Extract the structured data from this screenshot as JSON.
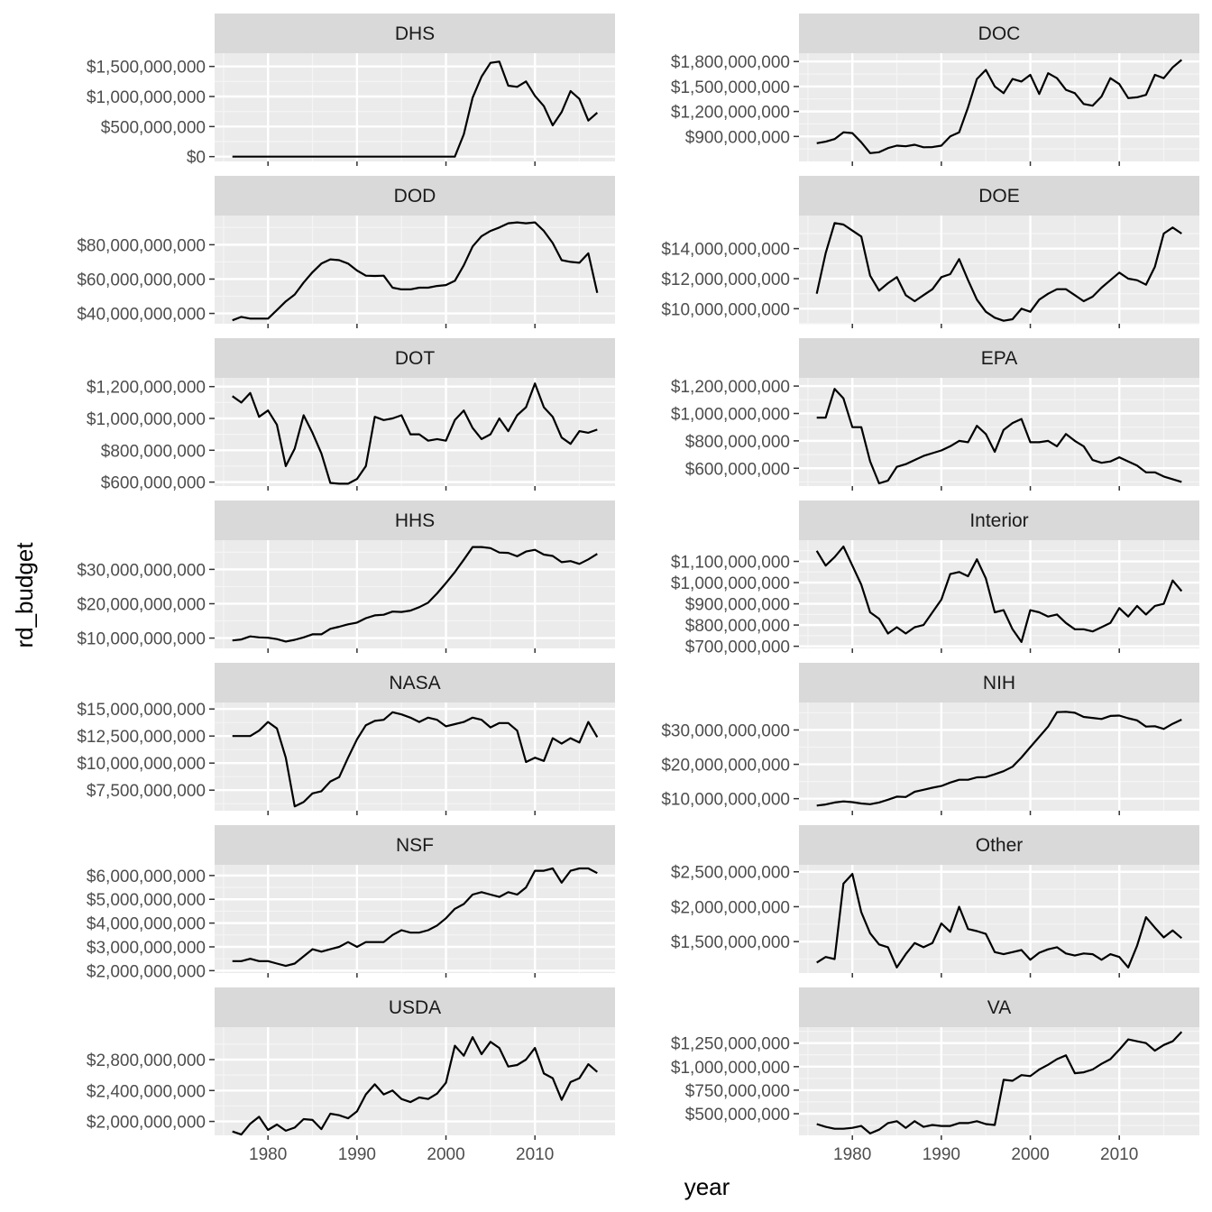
{
  "chart_data": {
    "type": "line",
    "xlabel": "year",
    "ylabel": "rd_budget",
    "xlim": [
      1974,
      2019
    ],
    "x_ticks": [
      1980,
      1990,
      2000,
      2010
    ],
    "x_tick_labels": [
      "1980",
      "1990",
      "2000",
      "2010"
    ],
    "x": [
      1976,
      1977,
      1978,
      1979,
      1980,
      1981,
      1982,
      1983,
      1984,
      1985,
      1986,
      1987,
      1988,
      1989,
      1990,
      1991,
      1992,
      1993,
      1994,
      1995,
      1996,
      1997,
      1998,
      1999,
      2000,
      2001,
      2002,
      2003,
      2004,
      2005,
      2006,
      2007,
      2008,
      2009,
      2010,
      2011,
      2012,
      2013,
      2014,
      2015,
      2016,
      2017
    ],
    "grid": true,
    "facets": [
      {
        "name": "DHS",
        "ylim": [
          -80000000,
          1720000000
        ],
        "y_ticks": [
          0,
          500000000,
          1000000000,
          1500000000
        ],
        "y_tick_labels": [
          "$0",
          "$500,000,000",
          "$1,000,000,000",
          "$1,500,000,000"
        ],
        "values": [
          0,
          0,
          0,
          0,
          0,
          0,
          0,
          0,
          0,
          0,
          0,
          0,
          0,
          0,
          0,
          0,
          0,
          0,
          0,
          0,
          0,
          0,
          0,
          0,
          0,
          0,
          370000000,
          980000000,
          1330000000,
          1560000000,
          1580000000,
          1180000000,
          1160000000,
          1250000000,
          1010000000,
          840000000,
          520000000,
          740000000,
          1090000000,
          960000000,
          600000000,
          730000000
        ]
      },
      {
        "name": "DOC",
        "ylim": [
          600000000,
          1900000000
        ],
        "y_ticks": [
          900000000,
          1200000000,
          1500000000,
          1800000000
        ],
        "y_tick_labels": [
          "$900,000,000",
          "$1,200,000,000",
          "$1,500,000,000",
          "$1,800,000,000"
        ],
        "values": [
          819000000,
          837000000,
          869000000,
          950000000,
          940000000,
          830000000,
          700000000,
          710000000,
          760000000,
          790000000,
          782000000,
          800000000,
          770000000,
          772000000,
          790000000,
          900000000,
          950000000,
          1250000000,
          1590000000,
          1700000000,
          1500000000,
          1420000000,
          1590000000,
          1560000000,
          1640000000,
          1410000000,
          1660000000,
          1600000000,
          1460000000,
          1420000000,
          1290000000,
          1270000000,
          1380000000,
          1600000000,
          1530000000,
          1360000000,
          1370000000,
          1400000000,
          1640000000,
          1600000000,
          1730000000,
          1820000000
        ]
      },
      {
        "name": "DOD",
        "ylim": [
          34000000000,
          97000000000
        ],
        "y_ticks": [
          40000000000,
          60000000000,
          80000000000
        ],
        "y_tick_labels": [
          "$40,000,000,000",
          "$60,000,000,000",
          "$80,000,000,000"
        ],
        "values": [
          36000000000,
          38000000000,
          37000000000,
          37000000000,
          37000000000,
          42000000000,
          47000000000,
          51000000000,
          58000000000,
          64000000000,
          69000000000,
          71500000000,
          71000000000,
          69000000000,
          65000000000,
          62000000000,
          61800000000,
          62000000000,
          55000000000,
          54000000000,
          54000000000,
          55000000000,
          55000000000,
          56000000000,
          56500000000,
          59000000000,
          68000000000,
          79000000000,
          85000000000,
          88000000000,
          90000000000,
          92500000000,
          93000000000,
          92500000000,
          93000000000,
          88000000000,
          81000000000,
          71000000000,
          70000000000,
          69500000000,
          75000000000,
          52000000000
        ]
      },
      {
        "name": "DOE",
        "ylim": [
          9000000000,
          16200000000
        ],
        "y_ticks": [
          10000000000,
          12000000000,
          14000000000
        ],
        "y_tick_labels": [
          "$10,000,000,000",
          "$12,000,000,000",
          "$14,000,000,000"
        ],
        "values": [
          11000000000,
          13700000000,
          15700000000,
          15600000000,
          15200000000,
          14800000000,
          12200000000,
          11200000000,
          11700000000,
          12100000000,
          10900000000,
          10500000000,
          10900000000,
          11300000000,
          12100000000,
          12300000000,
          13300000000,
          11900000000,
          10600000000,
          9800000000,
          9400000000,
          9200000000,
          9300000000,
          10000000000,
          9800000000,
          10600000000,
          11000000000,
          11300000000,
          11300000000,
          10900000000,
          10500000000,
          10800000000,
          11400000000,
          11900000000,
          12400000000,
          12000000000,
          11900000000,
          11600000000,
          12800000000,
          15000000000,
          15400000000,
          15000000000
        ]
      },
      {
        "name": "DOT",
        "ylim": [
          575000000,
          1255000000
        ],
        "y_ticks": [
          600000000,
          800000000,
          1000000000,
          1200000000
        ],
        "y_tick_labels": [
          "$600,000,000",
          "$800,000,000",
          "$1,000,000,000",
          "$1,200,000,000"
        ],
        "values": [
          1140000000,
          1100000000,
          1160000000,
          1010000000,
          1050000000,
          960000000,
          700000000,
          810000000,
          1020000000,
          910000000,
          780000000,
          595000000,
          590000000,
          590000000,
          620000000,
          700000000,
          1010000000,
          990000000,
          1000000000,
          1020000000,
          900000000,
          900000000,
          860000000,
          870000000,
          860000000,
          990000000,
          1050000000,
          940000000,
          870000000,
          900000000,
          1000000000,
          920000000,
          1020000000,
          1070000000,
          1220000000,
          1070000000,
          1010000000,
          880000000,
          840000000,
          920000000,
          910000000,
          930000000
        ]
      },
      {
        "name": "EPA",
        "ylim": [
          470000000,
          1260000000
        ],
        "y_ticks": [
          600000000,
          800000000,
          1000000000,
          1200000000
        ],
        "y_tick_labels": [
          "$600,000,000",
          "$800,000,000",
          "$1,000,000,000",
          "$1,200,000,000"
        ],
        "values": [
          970000000,
          970000000,
          1180000000,
          1110000000,
          900000000,
          900000000,
          650000000,
          490000000,
          510000000,
          610000000,
          630000000,
          660000000,
          690000000,
          710000000,
          730000000,
          760000000,
          800000000,
          790000000,
          910000000,
          850000000,
          720000000,
          880000000,
          930000000,
          960000000,
          790000000,
          790000000,
          800000000,
          760000000,
          850000000,
          800000000,
          760000000,
          660000000,
          640000000,
          650000000,
          680000000,
          650000000,
          620000000,
          570000000,
          570000000,
          540000000,
          520000000,
          500000000
        ]
      },
      {
        "name": "HHS",
        "ylim": [
          7000000000,
          38500000000
        ],
        "y_ticks": [
          10000000000,
          20000000000,
          30000000000
        ],
        "y_tick_labels": [
          "$10,000,000,000",
          "$20,000,000,000",
          "$30,000,000,000"
        ],
        "values": [
          9300000000,
          9600000000,
          10500000000,
          10200000000,
          10100000000,
          9700000000,
          9000000000,
          9500000000,
          10200000000,
          11100000000,
          11100000000,
          12700000000,
          13300000000,
          14000000000,
          14500000000,
          15800000000,
          16600000000,
          16800000000,
          17700000000,
          17600000000,
          18000000000,
          19000000000,
          20300000000,
          23000000000,
          26000000000,
          29200000000,
          32800000000,
          36500000000,
          36500000000,
          36200000000,
          34900000000,
          34800000000,
          33800000000,
          35200000000,
          35700000000,
          34300000000,
          33900000000,
          32100000000,
          32400000000,
          31600000000,
          32900000000,
          34500000000
        ]
      },
      {
        "name": "Interior",
        "ylim": [
          690000000,
          1200000000
        ],
        "y_ticks": [
          700000000,
          800000000,
          900000000,
          1000000000,
          1100000000
        ],
        "y_tick_labels": [
          "$700,000,000",
          "$800,000,000",
          "$900,000,000",
          "$1,000,000,000",
          "$1,100,000,000"
        ],
        "values": [
          1150000000,
          1080000000,
          1120000000,
          1170000000,
          1080000000,
          990000000,
          860000000,
          830000000,
          760000000,
          790000000,
          760000000,
          790000000,
          800000000,
          860000000,
          920000000,
          1040000000,
          1050000000,
          1030000000,
          1110000000,
          1020000000,
          860000000,
          870000000,
          780000000,
          720000000,
          870000000,
          860000000,
          840000000,
          850000000,
          810000000,
          780000000,
          780000000,
          770000000,
          790000000,
          810000000,
          880000000,
          840000000,
          890000000,
          850000000,
          890000000,
          900000000,
          1010000000,
          960000000
        ]
      },
      {
        "name": "NASA",
        "ylim": [
          5600000000,
          15600000000
        ],
        "y_ticks": [
          7500000000,
          10000000000,
          12500000000,
          15000000000
        ],
        "y_tick_labels": [
          "$7,500,000,000",
          "$10,000,000,000",
          "$12,500,000,000",
          "$15,000,000,000"
        ],
        "values": [
          12500000000,
          12500000000,
          12500000000,
          13000000000,
          13800000000,
          13200000000,
          10500000000,
          6000000000,
          6400000000,
          7200000000,
          7400000000,
          8300000000,
          8700000000,
          10500000000,
          12200000000,
          13500000000,
          13900000000,
          14000000000,
          14700000000,
          14500000000,
          14200000000,
          13800000000,
          14200000000,
          14000000000,
          13400000000,
          13600000000,
          13800000000,
          14200000000,
          14000000000,
          13300000000,
          13700000000,
          13700000000,
          13000000000,
          10100000000,
          10500000000,
          10200000000,
          12300000000,
          11800000000,
          12300000000,
          11900000000,
          13800000000,
          12400000000
        ]
      },
      {
        "name": "NIH",
        "ylim": [
          6500000000,
          38000000000
        ],
        "y_ticks": [
          10000000000,
          20000000000,
          30000000000
        ],
        "y_tick_labels": [
          "$10,000,000,000",
          "$20,000,000,000",
          "$30,000,000,000"
        ],
        "values": [
          8000000000,
          8300000000,
          8900000000,
          9200000000,
          9000000000,
          8600000000,
          8400000000,
          8900000000,
          9700000000,
          10600000000,
          10500000000,
          12000000000,
          12600000000,
          13200000000,
          13700000000,
          14700000000,
          15500000000,
          15500000000,
          16200000000,
          16300000000,
          17100000000,
          18000000000,
          19300000000,
          22000000000,
          25000000000,
          28000000000,
          31000000000,
          35200000000,
          35300000000,
          35000000000,
          33800000000,
          33500000000,
          33200000000,
          34100000000,
          34200000000,
          33400000000,
          32800000000,
          31000000000,
          31100000000,
          30300000000,
          31800000000,
          33000000000
        ]
      },
      {
        "name": "NSF",
        "ylim": [
          1900000000,
          6450000000
        ],
        "y_ticks": [
          2000000000,
          3000000000,
          4000000000,
          5000000000,
          6000000000
        ],
        "y_tick_labels": [
          "$2,000,000,000",
          "$3,000,000,000",
          "$4,000,000,000",
          "$5,000,000,000",
          "$6,000,000,000"
        ],
        "values": [
          2400000000,
          2400000000,
          2500000000,
          2400000000,
          2400000000,
          2300000000,
          2200000000,
          2300000000,
          2600000000,
          2900000000,
          2800000000,
          2900000000,
          3000000000,
          3200000000,
          3000000000,
          3200000000,
          3200000000,
          3200000000,
          3500000000,
          3700000000,
          3600000000,
          3600000000,
          3700000000,
          3900000000,
          4200000000,
          4600000000,
          4800000000,
          5200000000,
          5300000000,
          5200000000,
          5100000000,
          5300000000,
          5200000000,
          5500000000,
          6200000000,
          6200000000,
          6300000000,
          5700000000,
          6200000000,
          6300000000,
          6300000000,
          6100000000
        ]
      },
      {
        "name": "Other",
        "ylim": [
          1050000000,
          2600000000
        ],
        "y_ticks": [
          1500000000,
          2000000000,
          2500000000
        ],
        "y_tick_labels": [
          "$1,500,000,000",
          "$2,000,000,000",
          "$2,500,000,000"
        ],
        "values": [
          1200000000,
          1280000000,
          1250000000,
          2330000000,
          2470000000,
          1920000000,
          1620000000,
          1460000000,
          1420000000,
          1130000000,
          1320000000,
          1480000000,
          1420000000,
          1480000000,
          1760000000,
          1640000000,
          2000000000,
          1680000000,
          1650000000,
          1610000000,
          1350000000,
          1320000000,
          1350000000,
          1380000000,
          1240000000,
          1340000000,
          1390000000,
          1420000000,
          1330000000,
          1300000000,
          1330000000,
          1320000000,
          1240000000,
          1320000000,
          1280000000,
          1130000000,
          1440000000,
          1850000000,
          1700000000,
          1560000000,
          1660000000,
          1550000000
        ]
      },
      {
        "name": "USDA",
        "ylim": [
          1820000000,
          3220000000
        ],
        "y_ticks": [
          2000000000,
          2400000000,
          2800000000
        ],
        "y_tick_labels": [
          "$2,000,000,000",
          "$2,400,000,000",
          "$2,800,000,000"
        ],
        "values": [
          1870000000,
          1830000000,
          1970000000,
          2060000000,
          1890000000,
          1960000000,
          1880000000,
          1920000000,
          2030000000,
          2020000000,
          1900000000,
          2100000000,
          2080000000,
          2040000000,
          2130000000,
          2350000000,
          2480000000,
          2350000000,
          2400000000,
          2290000000,
          2250000000,
          2310000000,
          2290000000,
          2360000000,
          2500000000,
          2980000000,
          2850000000,
          3090000000,
          2870000000,
          3030000000,
          2950000000,
          2710000000,
          2730000000,
          2800000000,
          2950000000,
          2620000000,
          2560000000,
          2280000000,
          2510000000,
          2560000000,
          2740000000,
          2640000000
        ]
      },
      {
        "name": "VA",
        "ylim": [
          270000000,
          1420000000
        ],
        "y_ticks": [
          500000000,
          750000000,
          1000000000,
          1250000000
        ],
        "y_tick_labels": [
          "$500,000,000",
          "$750,000,000",
          "$1,000,000,000",
          "$1,250,000,000"
        ],
        "values": [
          390000000,
          360000000,
          340000000,
          340000000,
          350000000,
          370000000,
          290000000,
          330000000,
          400000000,
          420000000,
          350000000,
          420000000,
          360000000,
          380000000,
          370000000,
          370000000,
          400000000,
          400000000,
          420000000,
          390000000,
          380000000,
          860000000,
          850000000,
          910000000,
          900000000,
          970000000,
          1020000000,
          1080000000,
          1120000000,
          930000000,
          940000000,
          970000000,
          1030000000,
          1080000000,
          1180000000,
          1290000000,
          1270000000,
          1250000000,
          1170000000,
          1230000000,
          1270000000,
          1370000000
        ]
      }
    ]
  }
}
